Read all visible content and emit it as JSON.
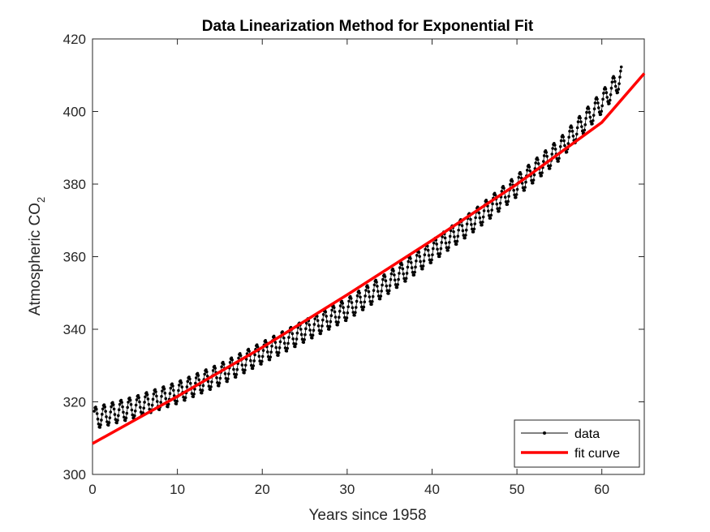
{
  "chart_data": {
    "type": "line",
    "title": "Data Linearization Method for Exponential Fit",
    "xlabel": "Years since 1958",
    "ylabel_main": "Atmospheric CO",
    "ylabel_sub": "2",
    "xlim": [
      0,
      65
    ],
    "ylim": [
      300,
      420
    ],
    "xticks": [
      0,
      10,
      20,
      30,
      40,
      50,
      60
    ],
    "yticks": [
      300,
      320,
      340,
      360,
      380,
      400,
      420
    ],
    "grid": false,
    "legend": {
      "placement": "bottom-right",
      "entries": [
        "data",
        "fit curve"
      ]
    },
    "series": [
      {
        "name": "data",
        "color": "#000000",
        "marker": "dot",
        "sampling": "monthly",
        "x_start": 0.21,
        "x_end": 62.3,
        "seasonal_amplitude_ppm": 3.0,
        "trend_points": [
          [
            0.21,
            315.5
          ],
          [
            5,
            318.5
          ],
          [
            10,
            322.5
          ],
          [
            15,
            327.5
          ],
          [
            20,
            333.5
          ],
          [
            25,
            339.5
          ],
          [
            30,
            345.5
          ],
          [
            35,
            353.0
          ],
          [
            40,
            361.5
          ],
          [
            45,
            370.0
          ],
          [
            50,
            379.5
          ],
          [
            55,
            389.5
          ],
          [
            60,
            402.5
          ],
          [
            62.3,
            409.5
          ]
        ]
      },
      {
        "name": "fit curve",
        "color": "#ff0000",
        "line_width": "thick",
        "x": [
          0,
          10,
          20,
          30,
          40,
          50,
          60,
          65
        ],
        "y": [
          308.5,
          321.5,
          335.0,
          349.5,
          364.5,
          380.0,
          397.0,
          410.5
        ]
      }
    ]
  }
}
